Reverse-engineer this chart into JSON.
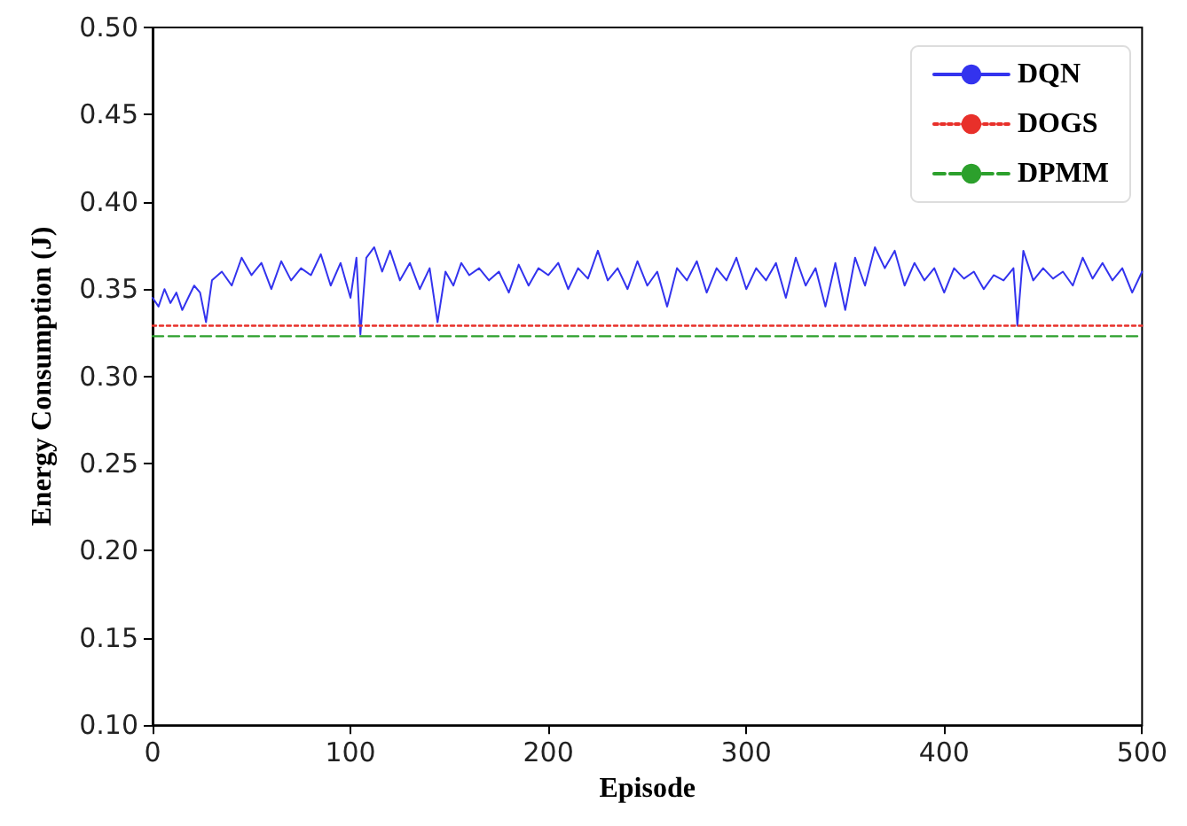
{
  "chart_data": {
    "type": "line",
    "xlabel": "Episode",
    "ylabel": "Energy Consumption (J)",
    "xlim": [
      0,
      500
    ],
    "xticks": [
      0,
      100,
      200,
      300,
      400,
      500
    ],
    "ylim": [
      0.1,
      0.5
    ],
    "yticks": [
      {
        "value": 0.1,
        "label": "0.10"
      },
      {
        "value": 0.15,
        "label": "0.15"
      },
      {
        "value": 0.2,
        "label": "0.20"
      },
      {
        "value": 0.25,
        "label": "0.25"
      },
      {
        "value": 0.3,
        "label": "0.30"
      },
      {
        "value": 0.35,
        "label": "0.35"
      },
      {
        "value": 0.4,
        "label": "0.40"
      },
      {
        "value": 0.45,
        "label": "0.45"
      },
      {
        "value": 0.5,
        "label": "0.50"
      }
    ],
    "legend": "top right",
    "grid": false,
    "marker": "none",
    "series": [
      {
        "name": "DQN",
        "color": "#3333ee",
        "line_style": "solid",
        "x": [
          0,
          3,
          6,
          9,
          12,
          15,
          18,
          21,
          24,
          27,
          30,
          35,
          40,
          45,
          50,
          55,
          60,
          65,
          70,
          75,
          80,
          85,
          90,
          95,
          100,
          103,
          105,
          108,
          112,
          116,
          120,
          125,
          130,
          135,
          140,
          144,
          148,
          152,
          156,
          160,
          165,
          170,
          175,
          180,
          185,
          190,
          195,
          200,
          205,
          210,
          215,
          220,
          225,
          230,
          235,
          240,
          245,
          250,
          255,
          260,
          265,
          270,
          275,
          280,
          285,
          290,
          295,
          300,
          305,
          310,
          315,
          320,
          325,
          330,
          335,
          340,
          345,
          350,
          355,
          360,
          365,
          370,
          375,
          380,
          385,
          390,
          395,
          400,
          405,
          410,
          415,
          420,
          425,
          430,
          435,
          437,
          440,
          445,
          450,
          455,
          460,
          465,
          470,
          475,
          480,
          485,
          490,
          495,
          500
        ],
        "values": [
          0.345,
          0.34,
          0.35,
          0.342,
          0.348,
          0.338,
          0.345,
          0.352,
          0.348,
          0.331,
          0.355,
          0.36,
          0.352,
          0.368,
          0.358,
          0.365,
          0.35,
          0.366,
          0.355,
          0.362,
          0.358,
          0.37,
          0.352,
          0.365,
          0.345,
          0.368,
          0.324,
          0.368,
          0.374,
          0.36,
          0.372,
          0.355,
          0.365,
          0.35,
          0.362,
          0.331,
          0.36,
          0.352,
          0.365,
          0.358,
          0.362,
          0.355,
          0.36,
          0.348,
          0.364,
          0.352,
          0.362,
          0.358,
          0.365,
          0.35,
          0.362,
          0.356,
          0.372,
          0.355,
          0.362,
          0.35,
          0.366,
          0.352,
          0.36,
          0.34,
          0.362,
          0.355,
          0.366,
          0.348,
          0.362,
          0.355,
          0.368,
          0.35,
          0.362,
          0.355,
          0.365,
          0.345,
          0.368,
          0.352,
          0.362,
          0.34,
          0.365,
          0.338,
          0.368,
          0.352,
          0.374,
          0.362,
          0.372,
          0.352,
          0.365,
          0.355,
          0.362,
          0.348,
          0.362,
          0.356,
          0.36,
          0.35,
          0.358,
          0.355,
          0.362,
          0.329,
          0.372,
          0.355,
          0.362,
          0.356,
          0.36,
          0.352,
          0.368,
          0.356,
          0.365,
          0.355,
          0.362,
          0.348,
          0.36
        ]
      },
      {
        "name": "DOGS",
        "color": "#e8302a",
        "line_style": "dotted",
        "x": [
          0,
          500
        ],
        "values": [
          0.329,
          0.329
        ]
      },
      {
        "name": "DPMM",
        "color": "#2ca02c",
        "line_style": "dashed",
        "x": [
          0,
          500
        ],
        "values": [
          0.323,
          0.323
        ]
      }
    ]
  }
}
